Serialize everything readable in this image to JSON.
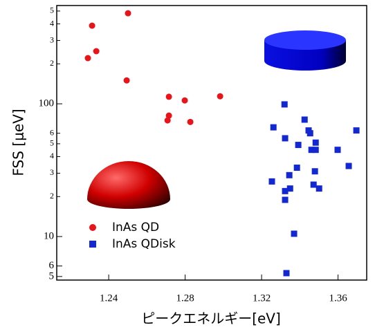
{
  "chart_data": {
    "type": "scatter",
    "x_label": "ピークエネルギー[eV]",
    "y_label": "FSS [μeV]",
    "log_y": true,
    "legend": "lower left",
    "xlim": [
      1.2128,
      1.375
    ],
    "ylim": [
      4.7,
      550
    ],
    "xticks": [
      1.24,
      1.28,
      1.32,
      1.36
    ],
    "yticks": [
      5,
      6,
      10,
      {
        "value": 20,
        "label": "2"
      },
      {
        "value": 30,
        "label": "3"
      },
      {
        "value": 40,
        "label": "4"
      },
      {
        "value": 50,
        "label": "5"
      },
      {
        "value": 60,
        "label": "6"
      },
      100,
      {
        "value": 200,
        "label": "2"
      },
      {
        "value": 300,
        "label": "3"
      },
      {
        "value": 400,
        "label": "4"
      },
      {
        "value": 500,
        "label": "5"
      }
    ],
    "series": [
      {
        "name": "InAs QD",
        "color": "#e8141a",
        "marker": "circle",
        "x": [
          1.2501,
          1.2313,
          1.2335,
          1.2291,
          1.2494,
          1.2715,
          1.2798,
          1.2983,
          1.2715,
          1.2708,
          1.2827
        ],
        "values": [
          481,
          388,
          249,
          221,
          150,
          113,
          106,
          114,
          81.5,
          75,
          73
        ]
      },
      {
        "name": "InAs QDisk",
        "color": "#1428d2",
        "marker": "square",
        "x": [
          1.332,
          1.3262,
          1.3323,
          1.3425,
          1.3446,
          1.3454,
          1.3392,
          1.3483,
          1.3461,
          1.3483,
          1.3598,
          1.3696,
          1.3656,
          1.3385,
          1.3345,
          1.3479,
          1.3254,
          1.3349,
          1.3323,
          1.3472,
          1.3501,
          1.3323,
          1.337,
          1.333
        ],
        "values": [
          99,
          66.5,
          55,
          76,
          63,
          60,
          49,
          51,
          45,
          45,
          45,
          63,
          34,
          33,
          29,
          31,
          26,
          23,
          22,
          24.6,
          23,
          18.9,
          10.5,
          5.3
        ]
      }
    ]
  }
}
